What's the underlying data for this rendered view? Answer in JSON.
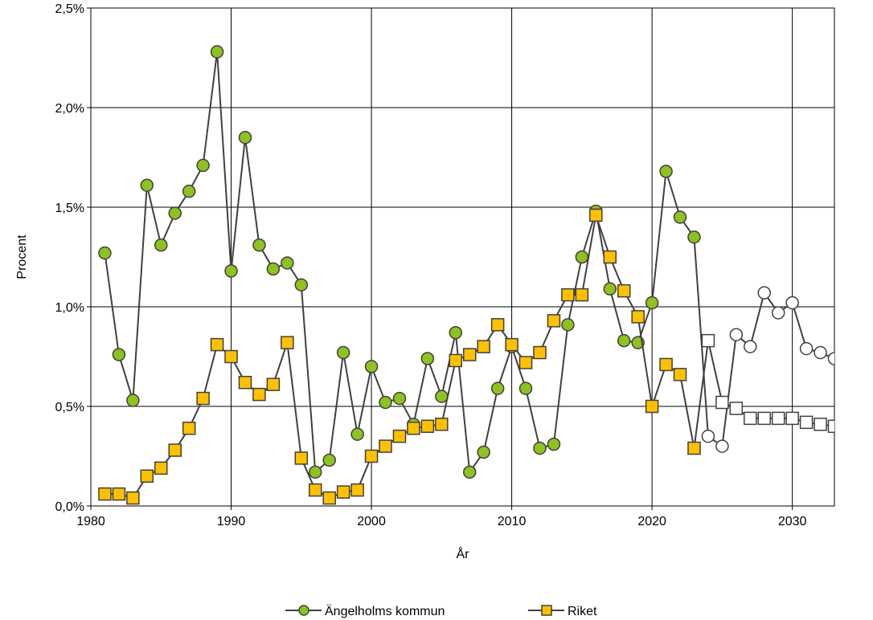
{
  "chart_data": {
    "type": "line",
    "xlabel": "År",
    "ylabel": "Procent",
    "xlim": [
      1980,
      2033
    ],
    "ylim": [
      0,
      2.5
    ],
    "x_ticks": [
      1980,
      1990,
      2000,
      2010,
      2020,
      2030
    ],
    "x_tick_labels": [
      "1980",
      "1990",
      "2000",
      "2010",
      "2020",
      "2030"
    ],
    "y_ticks": [
      0,
      0.5,
      1.0,
      1.5,
      2.0,
      2.5
    ],
    "y_tick_labels": [
      "0,0%",
      "0,5%",
      "1,0%",
      "1,5%",
      "2,0%",
      "2,5%"
    ],
    "grid": true,
    "legend_position": "bottom-center",
    "forecast_from_year": 2024,
    "series": [
      {
        "name": "Ängelholms kommun",
        "marker": "circle",
        "color": "#8dc21f",
        "x": [
          1981,
          1982,
          1983,
          1984,
          1985,
          1986,
          1987,
          1988,
          1989,
          1990,
          1991,
          1992,
          1993,
          1994,
          1995,
          1996,
          1997,
          1998,
          1999,
          2000,
          2001,
          2002,
          2003,
          2004,
          2005,
          2006,
          2007,
          2008,
          2009,
          2010,
          2011,
          2012,
          2013,
          2014,
          2015,
          2016,
          2017,
          2018,
          2019,
          2020,
          2021,
          2022,
          2023,
          2024,
          2025,
          2026,
          2027,
          2028,
          2029,
          2030,
          2031,
          2032,
          2033
        ],
        "values": [
          1.27,
          0.76,
          0.53,
          1.61,
          1.31,
          1.47,
          1.58,
          1.71,
          2.28,
          1.18,
          1.85,
          1.31,
          1.19,
          1.22,
          1.11,
          0.17,
          0.23,
          0.77,
          0.36,
          0.7,
          0.52,
          0.54,
          0.41,
          0.74,
          0.55,
          0.87,
          0.17,
          0.27,
          0.59,
          0.8,
          0.59,
          0.29,
          0.31,
          0.91,
          1.25,
          1.48,
          1.09,
          0.83,
          0.82,
          1.02,
          1.68,
          1.45,
          1.35,
          0.35,
          0.3,
          0.86,
          0.8,
          1.07,
          0.97,
          1.02,
          0.79,
          0.77,
          0.74
        ]
      },
      {
        "name": "Riket",
        "marker": "square",
        "color": "#ffc000",
        "x": [
          1981,
          1982,
          1983,
          1984,
          1985,
          1986,
          1987,
          1988,
          1989,
          1990,
          1991,
          1992,
          1993,
          1994,
          1995,
          1996,
          1997,
          1998,
          1999,
          2000,
          2001,
          2002,
          2003,
          2004,
          2005,
          2006,
          2007,
          2008,
          2009,
          2010,
          2011,
          2012,
          2013,
          2014,
          2015,
          2016,
          2017,
          2018,
          2019,
          2020,
          2021,
          2022,
          2023,
          2024,
          2025,
          2026,
          2027,
          2028,
          2029,
          2030,
          2031,
          2032,
          2033
        ],
        "values": [
          0.06,
          0.06,
          0.04,
          0.15,
          0.19,
          0.28,
          0.39,
          0.54,
          0.81,
          0.75,
          0.62,
          0.56,
          0.61,
          0.82,
          0.24,
          0.08,
          0.04,
          0.07,
          0.08,
          0.25,
          0.3,
          0.35,
          0.39,
          0.4,
          0.41,
          0.73,
          0.76,
          0.8,
          0.91,
          0.81,
          0.72,
          0.77,
          0.93,
          1.06,
          1.06,
          1.46,
          1.25,
          1.08,
          0.95,
          0.5,
          0.71,
          0.66,
          0.29,
          0.83,
          0.52,
          0.49,
          0.44,
          0.44,
          0.44,
          0.44,
          0.42,
          0.41,
          0.4
        ]
      }
    ]
  }
}
